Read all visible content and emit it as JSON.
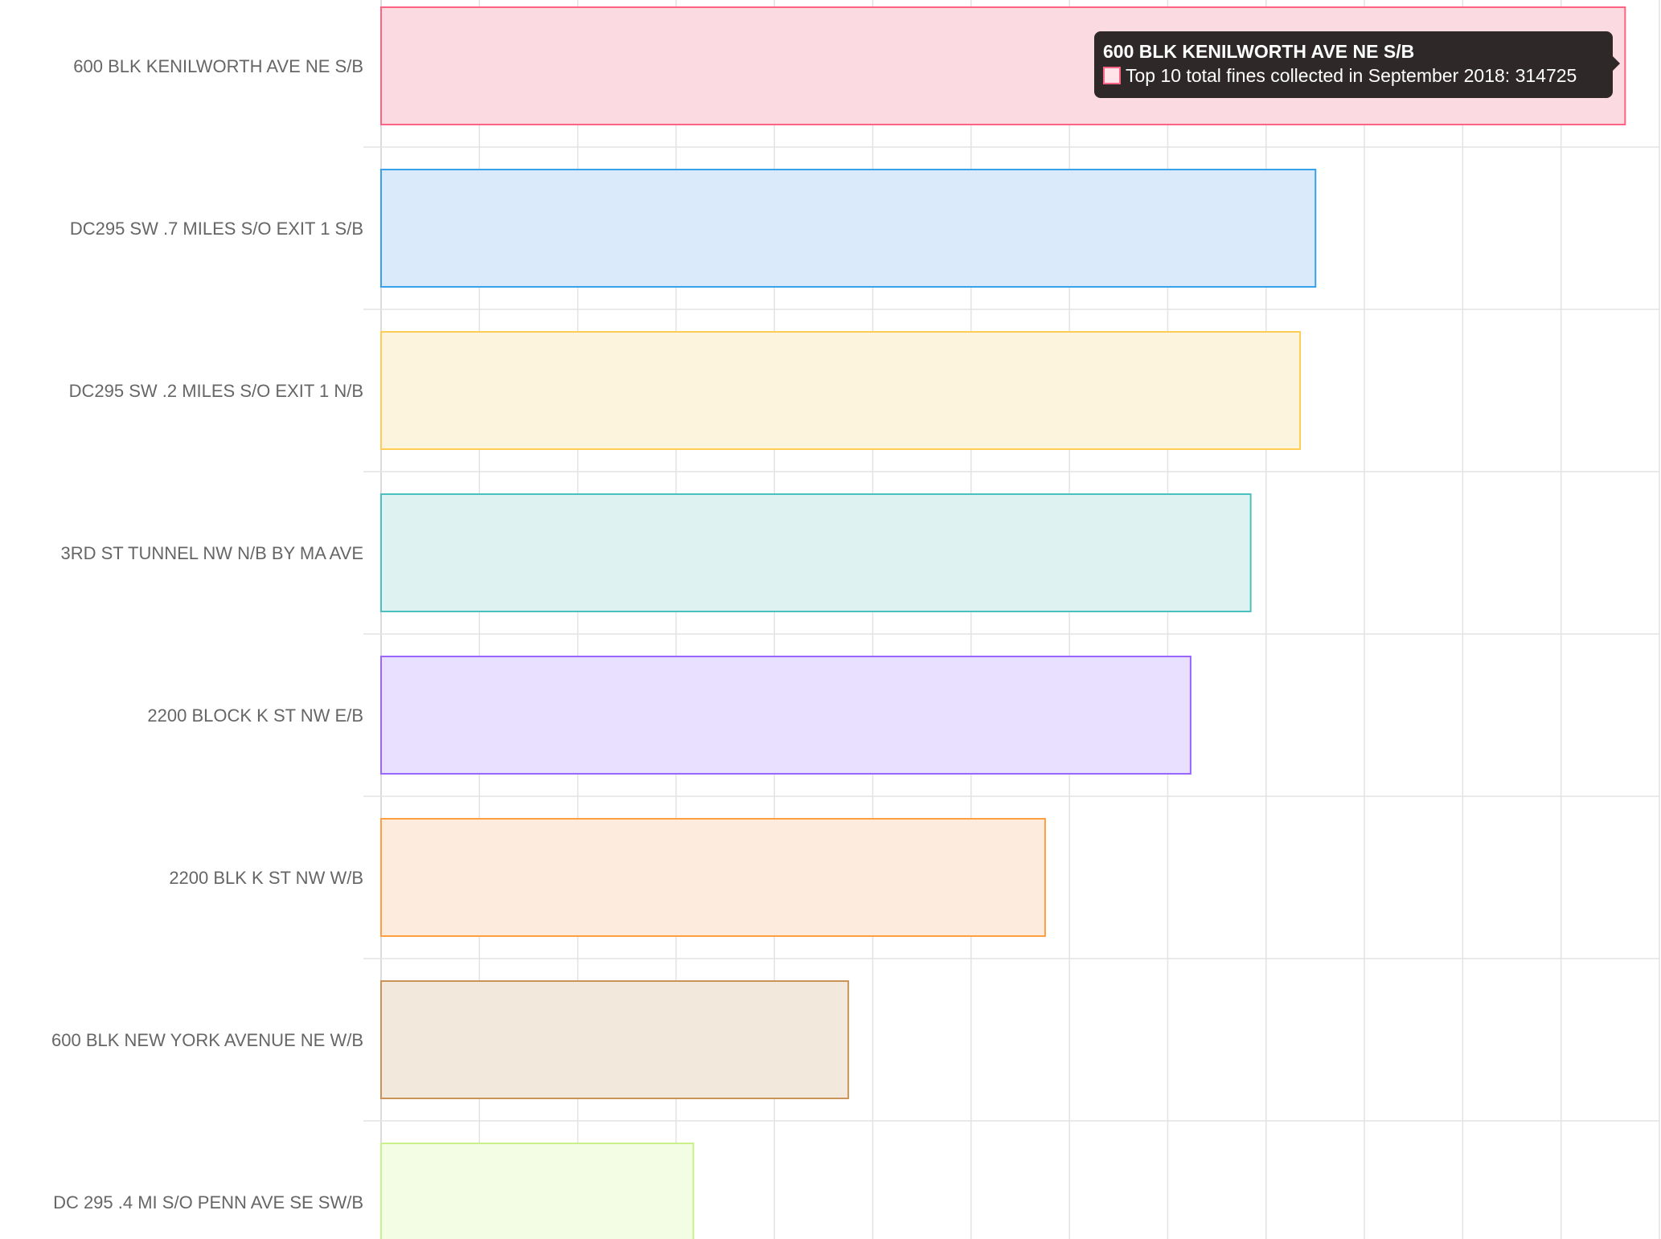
{
  "chart_data": {
    "type": "bar",
    "orientation": "horizontal",
    "categories": [
      "600 BLK KENILWORTH AVE NE S/B",
      "DC295 SW .7 MILES S/O EXIT 1 S/B",
      "DC295 SW .2 MILES S/O EXIT 1 N/B",
      "3RD ST TUNNEL NW N/B BY MA AVE",
      "2200 BLOCK K ST NW E/B",
      "2200 BLK K ST NW W/B",
      "600 BLK NEW YORK AVENUE NE W/B",
      "DC 295 .4 MI S/O PENN AVE SE SW/B"
    ],
    "series": [
      {
        "name": "Top 10 total fines collected in September 2018",
        "values": [
          314725,
          236400,
          232500,
          220000,
          204800,
          168000,
          118200,
          79000
        ]
      }
    ],
    "colors": {
      "borders": [
        "#ff6384",
        "#36a2eb",
        "#ffcd56",
        "#4bc0c0",
        "#9966ff",
        "#ff9f40",
        "#c9935a",
        "#c9f08a"
      ],
      "fills": [
        "#fcdae1",
        "#dbeafa",
        "#fdf4de",
        "#dff2f2",
        "#e8e0fe",
        "#fdecdd",
        "#f3e8dc",
        "#f2fde3"
      ]
    },
    "xlim": [
      0,
      323400
    ],
    "grid": true,
    "title": "",
    "xlabel": "",
    "ylabel": ""
  },
  "tooltip": {
    "title": "600 BLK KENILWORTH AVE NE S/B",
    "line": "Top 10 total fines collected in September 2018: 314725"
  }
}
